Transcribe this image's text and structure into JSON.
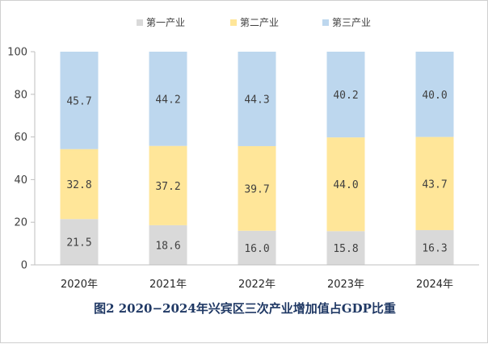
{
  "chart_data": {
    "type": "bar",
    "stacked": true,
    "percent": true,
    "categories": [
      "2020年",
      "2021年",
      "2022年",
      "2023年",
      "2024年"
    ],
    "series": [
      {
        "name": "第一产业",
        "color": "#d9d9d9",
        "values": [
          21.5,
          18.6,
          16.0,
          15.8,
          16.3
        ]
      },
      {
        "name": "第二产业",
        "color": "#ffe699",
        "values": [
          32.8,
          37.2,
          39.7,
          44.0,
          43.7
        ]
      },
      {
        "name": "第三产业",
        "color": "#bdd7ee",
        "values": [
          45.7,
          44.2,
          44.3,
          40.2,
          40.0
        ]
      }
    ],
    "value_labels": [
      [
        "21.5",
        "18.6",
        "16.0",
        "15.8",
        "16.3"
      ],
      [
        "32.8",
        "37.2",
        "39.7",
        "44.0",
        "43.7"
      ],
      [
        "45.7",
        "44.2",
        "44.3",
        "40.2",
        "40.0"
      ]
    ],
    "ylim": [
      0,
      100
    ],
    "yticks": [
      0,
      20,
      40,
      60,
      80,
      100
    ],
    "legend_position": "top",
    "title": "图2  2020−2024年兴宾区三次产业增加值占GDP比重"
  }
}
